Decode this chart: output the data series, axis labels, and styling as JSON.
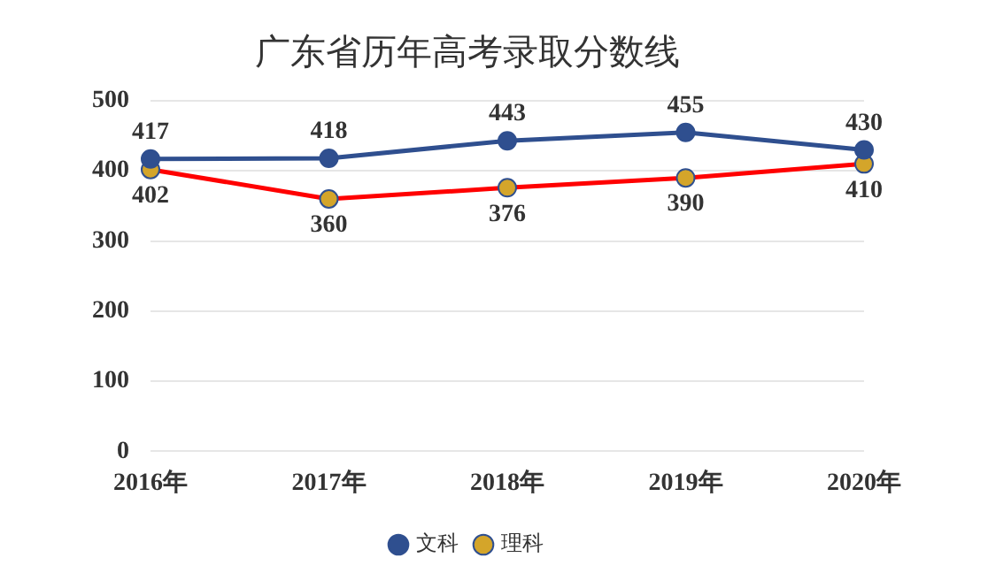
{
  "chart_data": {
    "type": "line",
    "title": "广东省历年高考录取分数线",
    "categories": [
      "2016年",
      "2017年",
      "2018年",
      "2019年",
      "2020年"
    ],
    "series": [
      {
        "name": "文科",
        "color": "#2f4f8f",
        "values": [
          417,
          418,
          443,
          455,
          430
        ]
      },
      {
        "name": "理科",
        "color": "#ff0000",
        "colors": [
          "#d4a52a",
          "#d4a52a",
          "#d4a52a",
          "#d4a52a",
          "#d4a52a"
        ],
        "values": [
          402,
          360,
          376,
          390,
          410
        ]
      }
    ],
    "ylim": [
      0,
      500
    ],
    "yticks": [
      0,
      100,
      200,
      300,
      400,
      500
    ],
    "grid": "y",
    "legend": "bottom",
    "marker": "circle",
    "line_style": "solid",
    "data_labels": true
  }
}
